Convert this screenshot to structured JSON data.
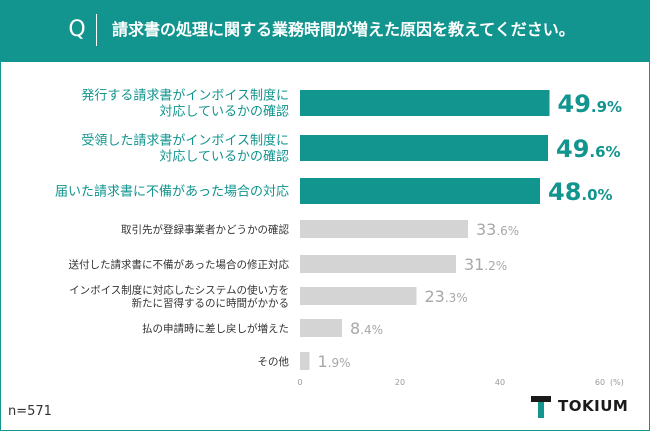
{
  "header": {
    "q_icon": "Q",
    "title": "請求書の処理に関する業務時間が増えた原因を教えてください。"
  },
  "footer": {
    "sample_size": "n=571",
    "brand": "TOKIUM"
  },
  "colors": {
    "accent": "#12948f",
    "muted_bar": "#d4d4d4",
    "muted_text": "#a8a8a8",
    "accent_text": "#12948f"
  },
  "chart_data": {
    "type": "bar",
    "orientation": "horizontal",
    "title": "請求書の処理に関する業務時間が増えた原因を教えてください。",
    "xlabel": "",
    "ylabel": "",
    "unit": "(%)",
    "xlim": [
      0,
      60
    ],
    "xticks": [
      0,
      20,
      40,
      60
    ],
    "categories": [
      "発行する請求書がインボイス制度に\n対応しているかの確認",
      "受領した請求書がインボイス制度に\n対応しているかの確認",
      "届いた請求書に不備があった場合の対応",
      "取引先が登録事業者かどうかの確認",
      "送付した請求書に不備があった場合の修正対応",
      "インボイス制度に対応したシステムの使い方を\n新たに習得するのに時間がかかる",
      "払の申請時に差し戻しが増えた",
      "その他"
    ],
    "values": [
      49.9,
      49.6,
      48.0,
      33.6,
      31.2,
      23.3,
      8.4,
      1.9
    ],
    "value_labels": [
      {
        "int": "49",
        "dec": ".9%"
      },
      {
        "int": "49",
        "dec": ".6%"
      },
      {
        "int": "48",
        "dec": ".0%"
      },
      {
        "int": "33",
        "dec": ".6%"
      },
      {
        "int": "31",
        "dec": ".2%"
      },
      {
        "int": "23",
        "dec": ".3%"
      },
      {
        "int": "8",
        "dec": ".4%"
      },
      {
        "int": "1",
        "dec": ".9%"
      }
    ],
    "highlighted": [
      true,
      true,
      true,
      false,
      false,
      false,
      false,
      false
    ],
    "grid": false
  }
}
